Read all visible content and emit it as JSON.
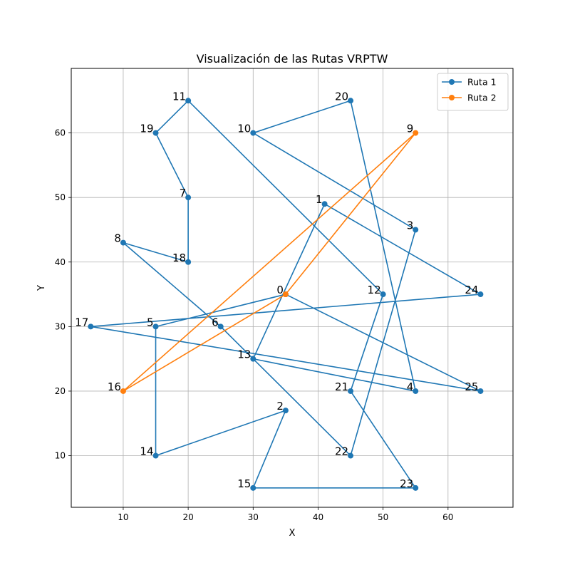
{
  "chart_data": {
    "type": "line",
    "title": "Visualización de las Rutas VRPTW",
    "xlabel": "X",
    "ylabel": "Y",
    "xlim": [
      2,
      70
    ],
    "ylim": [
      2,
      70
    ],
    "x_ticks": [
      10,
      20,
      30,
      40,
      50,
      60
    ],
    "y_ticks": [
      10,
      20,
      30,
      40,
      50,
      60
    ],
    "x_tick_labels": [
      "10",
      "20",
      "30",
      "40",
      "50",
      "60"
    ],
    "y_tick_labels": [
      "10",
      "20",
      "30",
      "40",
      "50",
      "60"
    ],
    "grid": true,
    "legend_position": "top-right",
    "series": [
      {
        "name": "Ruta 1",
        "color": "#1f77b4",
        "points": [
          {
            "x": 35,
            "y": 35,
            "label": "0"
          },
          {
            "x": 15,
            "y": 30,
            "label": "5"
          },
          {
            "x": 15,
            "y": 10,
            "label": "14"
          },
          {
            "x": 35,
            "y": 17,
            "label": "2"
          },
          {
            "x": 30,
            "y": 5,
            "label": "15"
          },
          {
            "x": 55,
            "y": 5,
            "label": "23"
          },
          {
            "x": 45,
            "y": 20,
            "label": "21"
          },
          {
            "x": 50,
            "y": 35,
            "label": "12"
          },
          {
            "x": 20,
            "y": 65,
            "label": "11"
          },
          {
            "x": 15,
            "y": 60,
            "label": "19"
          },
          {
            "x": 20,
            "y": 50,
            "label": "7"
          },
          {
            "x": 20,
            "y": 40,
            "label": "18"
          },
          {
            "x": 10,
            "y": 43,
            "label": "8"
          },
          {
            "x": 25,
            "y": 30,
            "label": "6"
          },
          {
            "x": 45,
            "y": 10,
            "label": "22"
          },
          {
            "x": 55,
            "y": 45,
            "label": "3"
          },
          {
            "x": 30,
            "y": 60,
            "label": "10"
          },
          {
            "x": 45,
            "y": 65,
            "label": "20"
          },
          {
            "x": 55,
            "y": 20,
            "label": "4"
          },
          {
            "x": 30,
            "y": 25,
            "label": "13"
          },
          {
            "x": 41,
            "y": 49,
            "label": "1"
          },
          {
            "x": 65,
            "y": 35,
            "label": "24"
          },
          {
            "x": 5,
            "y": 30,
            "label": "17"
          },
          {
            "x": 65,
            "y": 20,
            "label": "25"
          },
          {
            "x": 35,
            "y": 35,
            "label": "0"
          }
        ]
      },
      {
        "name": "Ruta 2",
        "color": "#ff7f0e",
        "points": [
          {
            "x": 35,
            "y": 35,
            "label": "0"
          },
          {
            "x": 10,
            "y": 20,
            "label": "16"
          },
          {
            "x": 55,
            "y": 60,
            "label": "9"
          },
          {
            "x": 35,
            "y": 35,
            "label": "0"
          }
        ]
      }
    ]
  }
}
